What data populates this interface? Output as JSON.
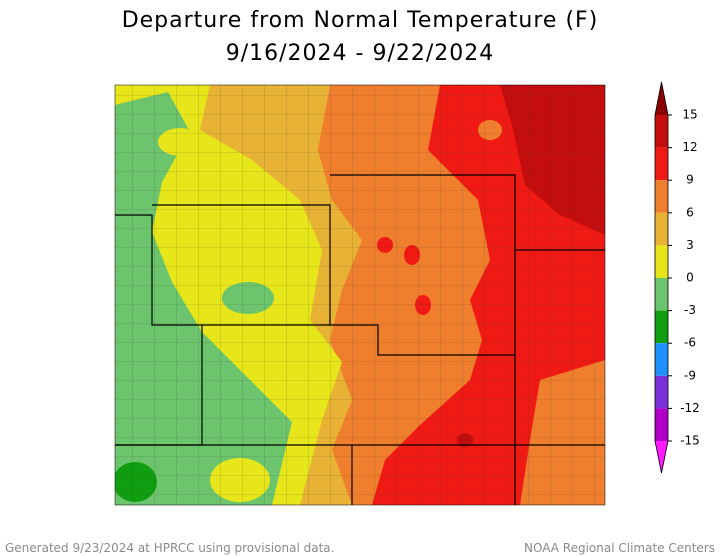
{
  "title": [
    "Departure from Normal Temperature (F)",
    "9/16/2024 - 9/22/2024"
  ],
  "colorbar": {
    "ticks": [
      15,
      12,
      9,
      6,
      3,
      0,
      -3,
      -6,
      -9,
      -12,
      -15
    ],
    "colors": [
      "#8b0000",
      "#c40d0d",
      "#f01a14",
      "#ef7f2c",
      "#e8b234",
      "#e6e61a",
      "#6cc46c",
      "#109e10",
      "#1e90ff",
      "#7b2fd6",
      "#b000c8",
      "#ff1aff"
    ]
  },
  "footer": {
    "left": "Generated 9/23/2024 at HPRCC using provisional data.",
    "right": "NOAA Regional Climate Centers"
  }
}
